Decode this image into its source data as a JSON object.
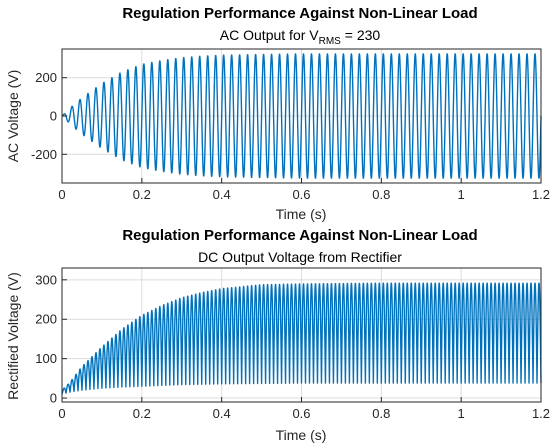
{
  "chart_data": [
    {
      "type": "line",
      "title": "Regulation Performance Against Non-Linear Load",
      "subtitle_main": "AC  Output  for  V",
      "subtitle_sub": "RMS",
      "subtitle_tail": "  =  230",
      "xlabel": "Time (s)",
      "ylabel": "AC Voltage (V)",
      "xlim": [
        0,
        1.2
      ],
      "ylim": [
        -350,
        350
      ],
      "xticks": [
        0,
        0.2,
        0.4,
        0.6,
        0.8,
        1,
        1.2
      ],
      "xtick_labels": [
        "0",
        "0.2",
        "0.4",
        "0.6",
        "0.8",
        "1",
        "1.2"
      ],
      "yticks": [
        200,
        0,
        -200
      ],
      "ytick_labels": [
        "200",
        "0",
        "-200"
      ],
      "grid": true,
      "series": [
        {
          "color": "#0072BD",
          "waveform": "sinusoid",
          "frequency_hz": 50,
          "envelope": {
            "t": [
              0,
              0.01,
              0.02,
              0.03,
              0.05,
              0.08,
              0.1,
              0.15,
              0.2,
              0.25,
              0.3,
              0.35,
              0.4,
              0.5,
              0.6,
              0.8,
              1.0,
              1.2
            ],
            "amplitude": [
              0,
              20,
              40,
              60,
              95,
              140,
              170,
              230,
              270,
              290,
              305,
              313,
              318,
              322,
              325,
              325,
              325,
              325
            ]
          }
        }
      ]
    },
    {
      "type": "line",
      "title": "Regulation Performance Against Non-Linear Load",
      "subtitle": "DC Output Voltage from Rectifier",
      "xlabel": "Time (s)",
      "ylabel": "Rectified Voltage (V)",
      "xlim": [
        0,
        1.2
      ],
      "ylim": [
        -10,
        330
      ],
      "xticks": [
        0,
        0.2,
        0.4,
        0.6,
        0.8,
        1,
        1.2
      ],
      "xtick_labels": [
        "0",
        "0.2",
        "0.4",
        "0.6",
        "0.8",
        "1",
        "1.2"
      ],
      "yticks": [
        0,
        100,
        200,
        300
      ],
      "ytick_labels": [
        "0",
        "100",
        "200",
        "300"
      ],
      "grid": true,
      "series": [
        {
          "color": "#0072BD",
          "waveform": "rectified-ripple",
          "frequency_hz": 100,
          "envelope": {
            "t": [
              0,
              0.02,
              0.05,
              0.1,
              0.15,
              0.2,
              0.25,
              0.3,
              0.35,
              0.4,
              0.5,
              0.6,
              0.8,
              1.0,
              1.2
            ],
            "upper": [
              20,
              40,
              80,
              130,
              175,
              210,
              235,
              255,
              268,
              278,
              288,
              290,
              292,
              292,
              292
            ],
            "lower": [
              10,
              15,
              20,
              25,
              28,
              30,
              32,
              34,
              35,
              36,
              37,
              38,
              38,
              38,
              38
            ]
          }
        }
      ]
    }
  ]
}
